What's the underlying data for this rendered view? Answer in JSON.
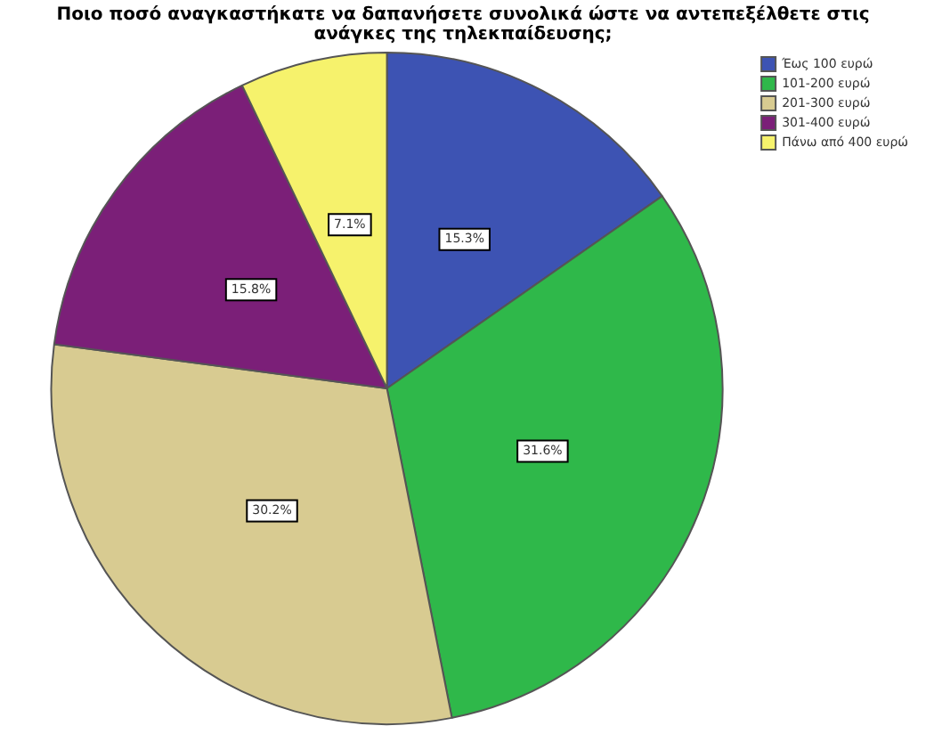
{
  "chart_data": {
    "type": "pie",
    "title": "Ποιο ποσό αναγκαστήκατε να δαπανήσετε συνολικά ώστε να αντεπεξέλθετε στις\nανάγκες της τηλεκπαίδευσης;",
    "categories": [
      "Έως 100 ευρώ",
      "101-200 ευρώ",
      "201-300 ευρώ",
      "301-400 ευρώ",
      "Πάνω από 400 ευρώ"
    ],
    "values": [
      15.3,
      31.6,
      30.2,
      15.8,
      7.1
    ],
    "colors": [
      "#3d53b3",
      "#2fb84a",
      "#d8cb91",
      "#7b1f78",
      "#f6f26c"
    ],
    "value_labels": [
      "15.3%",
      "31.6%",
      "30.2%",
      "15.8%",
      "7.1%"
    ],
    "legend": "top right"
  }
}
